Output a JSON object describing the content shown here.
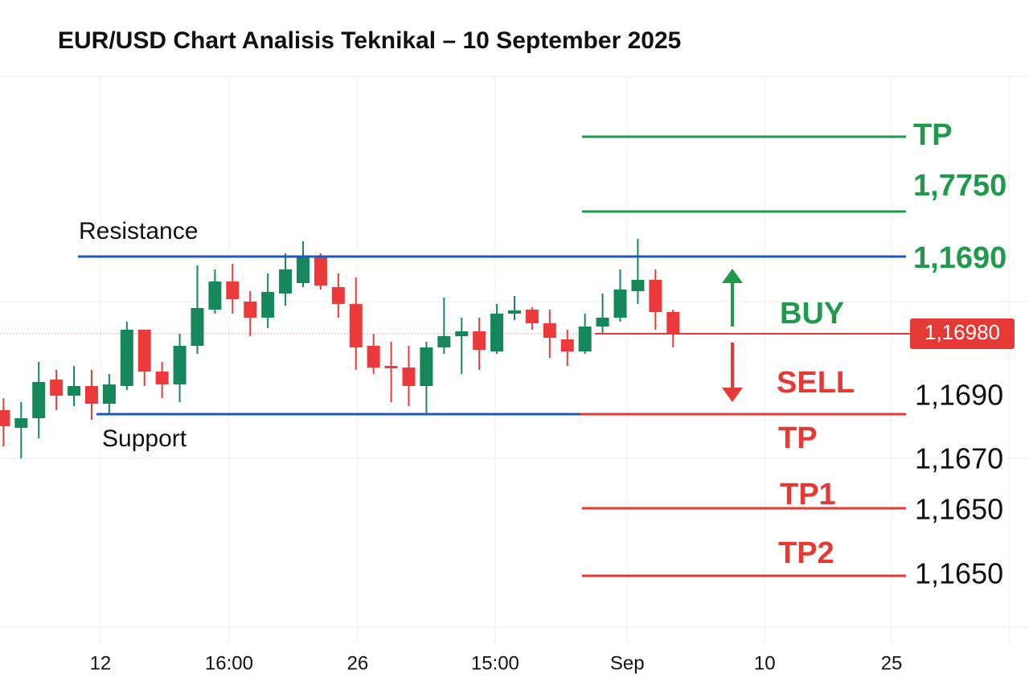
{
  "chart_data": {
    "type": "candlestick",
    "title": "EUR/USD Chart Analisis Teknikal – 10 September 2025",
    "xlim": [
      -0.2,
      58.2
    ],
    "xticks": [
      {
        "value": 5.5,
        "label": "12"
      },
      {
        "value": 12.8,
        "label": "16:00"
      },
      {
        "value": 20.1,
        "label": "26"
      },
      {
        "value": 27.9,
        "label": "15:00"
      },
      {
        "value": 35.4,
        "label": "Sep"
      },
      {
        "value": 43.2,
        "label": "10"
      },
      {
        "value": 50.4,
        "label": "25"
      }
    ],
    "ylim": [
      1.1623,
      1.1761
    ],
    "up_color": "#15875a",
    "down_color": "#ec3a3a",
    "open": [
      1.1679,
      1.16746,
      1.1677,
      1.16866,
      1.16826,
      1.1685,
      1.16806,
      1.1685,
      1.1699,
      1.16886,
      1.16854,
      1.1695,
      1.1704,
      1.1711,
      1.1706,
      1.1702,
      1.1708,
      1.17106,
      1.1717,
      1.17096,
      1.17054,
      1.1695,
      1.169,
      1.16896,
      1.1685,
      1.16946,
      1.16974,
      1.16986,
      1.16936,
      1.1703,
      1.1704,
      1.17006,
      1.16966,
      1.16936,
      1.16998,
      1.1702,
      1.17086,
      1.17114,
      1.17034
    ],
    "high": [
      1.1682,
      1.1681,
      1.1691,
      1.1689,
      1.169,
      1.1689,
      1.1688,
      1.1701,
      1.16984,
      1.1691,
      1.1698,
      1.1715,
      1.1714,
      1.17154,
      1.17086,
      1.1713,
      1.1718,
      1.1721,
      1.1718,
      1.1713,
      1.1712,
      1.1698,
      1.1696,
      1.1695,
      1.1696,
      1.1707,
      1.1702,
      1.1702,
      1.17054,
      1.17074,
      1.17046,
      1.1704,
      1.1699,
      1.1703,
      1.1708,
      1.1714,
      1.17216,
      1.1714,
      1.1704
    ],
    "low": [
      1.167,
      1.1667,
      1.1672,
      1.1679,
      1.168,
      1.16766,
      1.1678,
      1.1684,
      1.1685,
      1.1682,
      1.1681,
      1.1693,
      1.1703,
      1.1703,
      1.16974,
      1.16994,
      1.1705,
      1.17096,
      1.1709,
      1.1702,
      1.1689,
      1.1688,
      1.1681,
      1.168,
      1.1678,
      1.1693,
      1.1688,
      1.1689,
      1.1693,
      1.17014,
      1.1699,
      1.1692,
      1.169,
      1.1693,
      1.1698,
      1.1701,
      1.17054,
      1.1699,
      1.16946
    ],
    "close": [
      1.1675,
      1.1677,
      1.1686,
      1.16826,
      1.1685,
      1.16806,
      1.16854,
      1.1699,
      1.16886,
      1.16854,
      1.1695,
      1.17044,
      1.1711,
      1.17066,
      1.1702,
      1.17084,
      1.1714,
      1.1717,
      1.171,
      1.17054,
      1.16946,
      1.16896,
      1.16894,
      1.1685,
      1.16946,
      1.16974,
      1.16986,
      1.1694,
      1.1703,
      1.17038,
      1.17006,
      1.1697,
      1.16936,
      1.16998,
      1.1702,
      1.1709,
      1.17114,
      1.17034,
      1.1698
    ],
    "levels": [
      {
        "value": 1.17172,
        "color": "#1f56c0"
      },
      {
        "value": 1.1678,
        "color": "#1f56c0"
      },
      {
        "value": 1.1678,
        "color": "#e53935"
      },
      {
        "value": 1.1747,
        "color": "#1e9a4a"
      },
      {
        "value": 1.17284,
        "color": "#1e9a4a"
      },
      {
        "value": 1.16546,
        "color": "#e53935"
      },
      {
        "value": 1.16378,
        "color": "#e53935"
      }
    ],
    "current_price": {
      "value": 1.1698,
      "label": "1,16980",
      "color": "#e53935"
    },
    "annotations": [
      {
        "text": "Resistance",
        "color": "#111111"
      },
      {
        "text": "Support",
        "color": "#111111"
      },
      {
        "text": "TP",
        "color": "#1e9a4a"
      },
      {
        "text": "1,7750",
        "color": "#1e9a4a"
      },
      {
        "text": "1,1690",
        "color": "#1e9a4a"
      },
      {
        "text": "BUY",
        "color": "#1e9a4a"
      },
      {
        "text": "SELL",
        "color": "#e53935"
      },
      {
        "text": "1,1690",
        "color": "#111111"
      },
      {
        "text": "TP",
        "color": "#e53935"
      },
      {
        "text": "1,1670",
        "color": "#111111"
      },
      {
        "text": "TP1",
        "color": "#e53935"
      },
      {
        "text": "1,1650",
        "color": "#111111"
      },
      {
        "text": "TP2",
        "color": "#e53935"
      },
      {
        "text": "1,1650",
        "color": "#111111"
      }
    ]
  }
}
